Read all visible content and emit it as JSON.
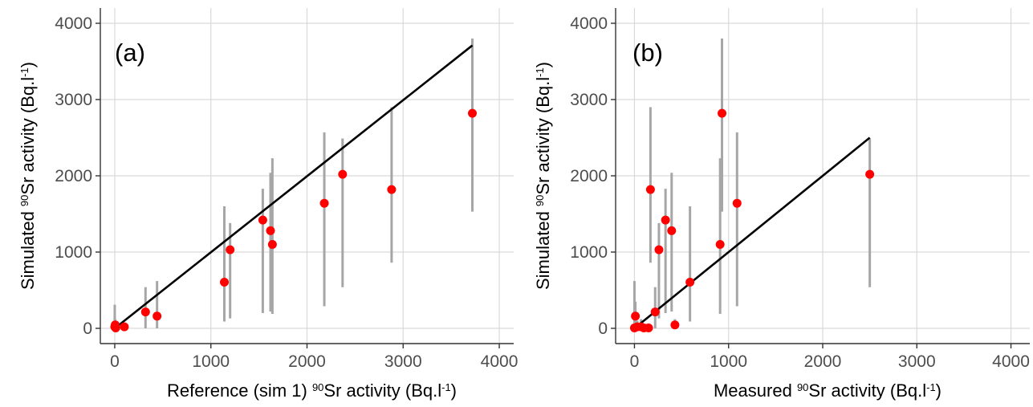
{
  "chart_data": [
    {
      "type": "scatter",
      "panel_label": "(a)",
      "xlabel": {
        "pre": "Reference (sim 1) ",
        "sup": "90",
        "mid": "Sr activity (Bq.l",
        "sup2": "-1",
        "post": ")"
      },
      "ylabel": {
        "pre": "Simulated ",
        "sup": "90",
        "mid": "Sr activity (Bq.l",
        "sup2": "-1",
        "post": ")"
      },
      "xlim": [
        -150,
        4150
      ],
      "ylim": [
        -200,
        4200
      ],
      "xticks": [
        0,
        1000,
        2000,
        3000,
        4000
      ],
      "yticks": [
        0,
        1000,
        2000,
        3000,
        4000
      ],
      "grid": true,
      "line": {
        "x": [
          0,
          3720
        ],
        "y": [
          0,
          3710
        ]
      },
      "points": [
        {
          "x": 0,
          "y": 20,
          "lo": 0,
          "hi": 310
        },
        {
          "x": 5,
          "y": 45,
          "lo": 0,
          "hi": 120
        },
        {
          "x": 10,
          "y": 5,
          "lo": 0,
          "hi": 60
        },
        {
          "x": 100,
          "y": 20,
          "lo": 0,
          "hi": 60
        },
        {
          "x": 320,
          "y": 215,
          "lo": 0,
          "hi": 540
        },
        {
          "x": 440,
          "y": 160,
          "lo": 0,
          "hi": 620
        },
        {
          "x": 1140,
          "y": 605,
          "lo": 90,
          "hi": 1600
        },
        {
          "x": 1200,
          "y": 1030,
          "lo": 130,
          "hi": 1380
        },
        {
          "x": 1540,
          "y": 1420,
          "lo": 200,
          "hi": 1830
        },
        {
          "x": 1620,
          "y": 1280,
          "lo": 220,
          "hi": 2040
        },
        {
          "x": 1640,
          "y": 1100,
          "lo": 190,
          "hi": 2230
        },
        {
          "x": 2180,
          "y": 1640,
          "lo": 290,
          "hi": 2570
        },
        {
          "x": 2370,
          "y": 2020,
          "lo": 540,
          "hi": 2490
        },
        {
          "x": 2880,
          "y": 1820,
          "lo": 860,
          "hi": 2900
        },
        {
          "x": 3720,
          "y": 2820,
          "lo": 1530,
          "hi": 3800
        }
      ]
    },
    {
      "type": "scatter",
      "panel_label": "(b)",
      "xlabel": {
        "pre": "Measured ",
        "sup": "90",
        "mid": "Sr activity (Bq.l",
        "sup2": "-1",
        "post": ")"
      },
      "ylabel": {
        "pre": "Simulated ",
        "sup": "90",
        "mid": "Sr activity (Bq.l",
        "sup2": "-1",
        "post": ")"
      },
      "xlim": [
        -200,
        4200
      ],
      "ylim": [
        -200,
        4200
      ],
      "xticks": [
        0,
        1000,
        2000,
        3000,
        4000
      ],
      "yticks": [
        0,
        1000,
        2000,
        3000,
        4000
      ],
      "grid": true,
      "line": {
        "x": [
          0,
          2500
        ],
        "y": [
          0,
          2500
        ]
      },
      "points": [
        {
          "x": 0,
          "y": 5,
          "lo": 0,
          "hi": 620
        },
        {
          "x": 10,
          "y": 160,
          "lo": 0,
          "hi": 350
        },
        {
          "x": 30,
          "y": 20,
          "lo": 0,
          "hi": 100
        },
        {
          "x": 70,
          "y": 20,
          "lo": 0,
          "hi": 120
        },
        {
          "x": 100,
          "y": 5,
          "lo": 0,
          "hi": 60
        },
        {
          "x": 150,
          "y": 5,
          "lo": 0,
          "hi": 40
        },
        {
          "x": 170,
          "y": 1820,
          "lo": 860,
          "hi": 2900
        },
        {
          "x": 220,
          "y": 215,
          "lo": 0,
          "hi": 540
        },
        {
          "x": 260,
          "y": 1030,
          "lo": 130,
          "hi": 1380
        },
        {
          "x": 330,
          "y": 1420,
          "lo": 200,
          "hi": 1830
        },
        {
          "x": 395,
          "y": 1280,
          "lo": 220,
          "hi": 2040
        },
        {
          "x": 430,
          "y": 45,
          "lo": 0,
          "hi": 120
        },
        {
          "x": 590,
          "y": 605,
          "lo": 90,
          "hi": 1600
        },
        {
          "x": 910,
          "y": 1100,
          "lo": 190,
          "hi": 2230
        },
        {
          "x": 930,
          "y": 2820,
          "lo": 1530,
          "hi": 3800
        },
        {
          "x": 1090,
          "y": 1640,
          "lo": 290,
          "hi": 2570
        },
        {
          "x": 2500,
          "y": 2020,
          "lo": 540,
          "hi": 2490
        }
      ]
    }
  ]
}
